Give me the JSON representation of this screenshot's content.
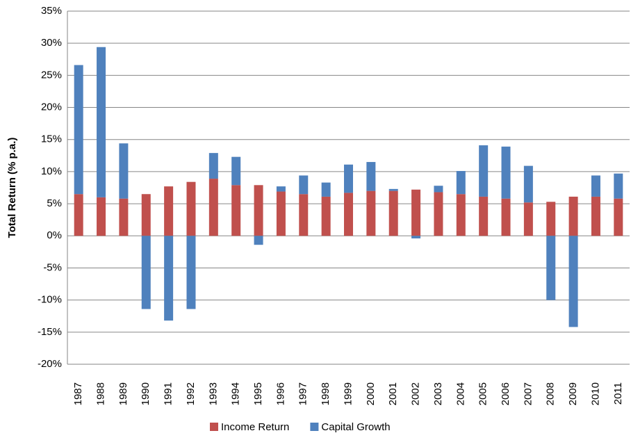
{
  "chart_data": {
    "type": "bar",
    "stacked": true,
    "y_label": "Total Return (% p.a.)",
    "categories": [
      "1987",
      "1988",
      "1989",
      "1990",
      "1991",
      "1992",
      "1993",
      "1994",
      "1995",
      "1996",
      "1997",
      "1998",
      "1999",
      "2000",
      "2001",
      "2002",
      "2003",
      "2004",
      "2005",
      "2006",
      "2007",
      "2008",
      "2009",
      "2010",
      "2011"
    ],
    "series": [
      {
        "name": "Income Return",
        "color": "#c0504d",
        "values": [
          6.5,
          6.0,
          5.8,
          6.5,
          7.7,
          8.4,
          8.9,
          7.9,
          7.9,
          6.9,
          6.5,
          6.1,
          6.7,
          7.0,
          7.0,
          7.2,
          6.8,
          6.5,
          6.1,
          5.8,
          5.2,
          5.3,
          6.1,
          6.1,
          5.8
        ]
      },
      {
        "name": "Capital Growth",
        "color": "#4f81bd",
        "values": [
          20.1,
          23.4,
          8.6,
          -11.4,
          -13.2,
          -11.4,
          4.0,
          4.4,
          -1.4,
          0.8,
          2.9,
          2.2,
          4.4,
          4.5,
          0.3,
          -0.4,
          1.0,
          3.6,
          8.0,
          8.1,
          5.7,
          -10.0,
          -14.2,
          3.3,
          3.9
        ]
      }
    ],
    "ylim": [
      -20,
      35
    ],
    "yticks": [
      {
        "value": -20,
        "label": "-20%"
      },
      {
        "value": -15,
        "label": "-15%"
      },
      {
        "value": -10,
        "label": "-10%"
      },
      {
        "value": -5,
        "label": "-5%"
      },
      {
        "value": 0,
        "label": "0%"
      },
      {
        "value": 5,
        "label": "5%"
      },
      {
        "value": 10,
        "label": "10%"
      },
      {
        "value": 15,
        "label": "15%"
      },
      {
        "value": 20,
        "label": "20%"
      },
      {
        "value": 25,
        "label": "25%"
      },
      {
        "value": 30,
        "label": "30%"
      },
      {
        "value": 35,
        "label": "35%"
      }
    ],
    "grid": true,
    "legend": "bottom"
  }
}
